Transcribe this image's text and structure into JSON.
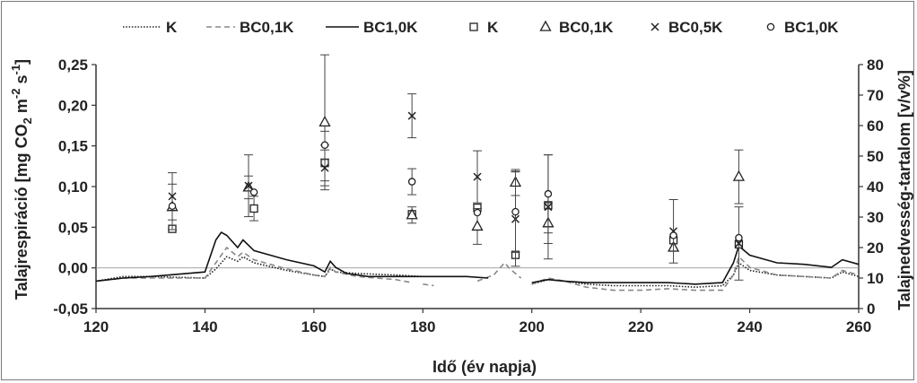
{
  "chart_data": {
    "type": "line",
    "xlabel": "Idő (év napja)",
    "ylabel": "Talajrespiráció [mg CO2 m-2 s-1]",
    "ylabel_parts": {
      "a": "Talajrespiráció [mg CO",
      "b": "2",
      "c": " m",
      "d": "-2",
      "e": " s",
      "f": "-1",
      "g": "]"
    },
    "y2label": "Talajnedvesség-tartalom [v/v%]",
    "xlim": [
      120,
      260
    ],
    "ylim": [
      -0.05,
      0.25
    ],
    "y2lim": [
      0,
      80
    ],
    "x_ticks": [
      "120",
      "140",
      "160",
      "180",
      "200",
      "220",
      "240",
      "260"
    ],
    "y_ticks": [
      "-0,05",
      "0,00",
      "0,05",
      "0,10",
      "0,15",
      "0,20",
      "0,25"
    ],
    "y2_ticks": [
      "0",
      "10",
      "20",
      "30",
      "40",
      "50",
      "60",
      "70",
      "80"
    ],
    "legend_position": "top",
    "line_series": [
      {
        "name": "K",
        "style": "dotted",
        "axis": "secondary",
        "segments": [
          [
            [
              120,
              9
            ],
            [
              125,
              10.5
            ],
            [
              130,
              10.5
            ],
            [
              140,
              10
            ],
            [
              142,
              13
            ],
            [
              144,
              17
            ],
            [
              146,
              15.5
            ],
            [
              147,
              17
            ],
            [
              149,
              15
            ],
            [
              155,
              12.5
            ],
            [
              160,
              11
            ],
            [
              162,
              10.5
            ],
            [
              163,
              13
            ],
            [
              164,
              12
            ],
            [
              168,
              11.5
            ],
            [
              175,
              11
            ],
            [
              180,
              10.5
            ]
          ],
          [
            [
              200,
              8
            ],
            [
              203,
              9.5
            ],
            [
              206,
              9
            ],
            [
              210,
              8
            ],
            [
              215,
              7.5
            ],
            [
              220,
              7.5
            ],
            [
              225,
              7.5
            ],
            [
              230,
              7
            ],
            [
              235,
              7.5
            ],
            [
              237,
              11
            ],
            [
              238,
              15
            ],
            [
              240,
              12.5
            ],
            [
              245,
              11
            ],
            [
              250,
              10.5
            ],
            [
              255,
              10
            ],
            [
              257,
              12
            ],
            [
              260,
              10.5
            ]
          ]
        ]
      },
      {
        "name": "BC0,1K",
        "style": "dashed",
        "axis": "secondary",
        "segments": [
          [
            [
              120,
              9
            ],
            [
              125,
              10
            ],
            [
              130,
              10
            ],
            [
              140,
              10
            ],
            [
              142,
              15
            ],
            [
              144,
              20
            ],
            [
              146,
              17
            ],
            [
              147,
              18.5
            ],
            [
              149,
              16
            ],
            [
              155,
              13
            ],
            [
              160,
              11
            ],
            [
              162,
              10.5
            ],
            [
              163,
              13.5
            ],
            [
              164,
              12
            ],
            [
              168,
              10.5
            ],
            [
              175,
              9.5
            ],
            [
              178,
              8.5
            ]
          ],
          [
            [
              180,
              8
            ],
            [
              182,
              7.5
            ]
          ],
          [
            [
              190,
              9
            ],
            [
              193,
              11
            ],
            [
              195,
              15
            ],
            [
              196,
              13
            ],
            [
              198,
              10
            ]
          ],
          [
            [
              200,
              8
            ],
            [
              203,
              10
            ],
            [
              206,
              9
            ],
            [
              210,
              7
            ],
            [
              215,
              6
            ],
            [
              220,
              6
            ],
            [
              225,
              6.5
            ],
            [
              230,
              6
            ],
            [
              235,
              6
            ],
            [
              237,
              11
            ],
            [
              238,
              17
            ],
            [
              240,
              13.5
            ],
            [
              245,
              11
            ],
            [
              250,
              10.5
            ],
            [
              255,
              10
            ],
            [
              257,
              12.5
            ],
            [
              260,
              11
            ]
          ]
        ]
      },
      {
        "name": "BC1,0K",
        "style": "solid",
        "axis": "secondary",
        "segments": [
          [
            [
              120,
              9
            ],
            [
              125,
              10
            ],
            [
              130,
              10.5
            ],
            [
              140,
              12
            ],
            [
              142,
              22.5
            ],
            [
              143,
              25
            ],
            [
              144,
              24
            ],
            [
              146,
              20
            ],
            [
              147,
              22.5
            ],
            [
              149,
              19
            ],
            [
              152,
              17.5
            ],
            [
              155,
              16
            ],
            [
              160,
              14
            ],
            [
              162,
              12
            ],
            [
              163,
              15.5
            ],
            [
              164,
              13.5
            ],
            [
              166,
              11.5
            ],
            [
              170,
              10.5
            ],
            [
              180,
              10.5
            ],
            [
              188,
              10.5
            ],
            [
              192,
              10
            ]
          ],
          [
            [
              200,
              8.5
            ],
            [
              203,
              9.5
            ],
            [
              206,
              9
            ],
            [
              210,
              8.5
            ],
            [
              215,
              8.5
            ],
            [
              220,
              8.5
            ],
            [
              225,
              8.5
            ],
            [
              230,
              8
            ],
            [
              235,
              8.5
            ],
            [
              237,
              15
            ],
            [
              238,
              20.5
            ],
            [
              239,
              19
            ],
            [
              240,
              17.5
            ],
            [
              245,
              15
            ],
            [
              250,
              14.5
            ],
            [
              255,
              13.5
            ],
            [
              257,
              16
            ],
            [
              260,
              14.5
            ]
          ]
        ]
      }
    ],
    "point_series": [
      {
        "name": "K",
        "marker": "square",
        "axis": "primary",
        "points": [
          {
            "x": 134,
            "y": 0.048,
            "err": 0
          },
          {
            "x": 149,
            "y": 0.073,
            "err": 0.015
          },
          {
            "x": 162,
            "y": 0.129,
            "err": 0.022
          },
          {
            "x": 178,
            "y": 0.066,
            "err": 0
          },
          {
            "x": 190,
            "y": 0.074,
            "err": 0
          },
          {
            "x": 197,
            "y": 0.016,
            "err": 0
          },
          {
            "x": 203,
            "y": 0.077,
            "err": 0
          },
          {
            "x": 226,
            "y": 0.034,
            "err": 0
          },
          {
            "x": 238,
            "y": 0.029,
            "err": 0
          }
        ]
      },
      {
        "name": "BC0,1K",
        "marker": "triangle",
        "axis": "primary",
        "points": [
          {
            "x": 134,
            "y": 0.075,
            "err": 0.028
          },
          {
            "x": 148,
            "y": 0.099,
            "err": 0.014
          },
          {
            "x": 162,
            "y": 0.179,
            "err": 0.083
          },
          {
            "x": 178,
            "y": 0.065,
            "err": 0.01
          },
          {
            "x": 190,
            "y": 0.051,
            "err": 0.022
          },
          {
            "x": 197,
            "y": 0.105,
            "err": 0.016
          },
          {
            "x": 203,
            "y": 0.055,
            "err": 0.025
          },
          {
            "x": 226,
            "y": 0.025,
            "err": 0
          },
          {
            "x": 238,
            "y": 0.112,
            "err": 0.033
          }
        ]
      },
      {
        "name": "BC0,5K",
        "marker": "cross",
        "axis": "primary",
        "points": [
          {
            "x": 134,
            "y": 0.088,
            "err": 0.029
          },
          {
            "x": 148,
            "y": 0.101,
            "err": 0.038
          },
          {
            "x": 162,
            "y": 0.123,
            "err": 0.022
          },
          {
            "x": 178,
            "y": 0.187,
            "err": 0.027
          },
          {
            "x": 190,
            "y": 0.112,
            "err": 0.032
          },
          {
            "x": 197,
            "y": 0.06,
            "err": 0.058
          },
          {
            "x": 203,
            "y": 0.075,
            "err": 0.064
          },
          {
            "x": 226,
            "y": 0.045,
            "err": 0.039
          },
          {
            "x": 238,
            "y": 0.03,
            "err": 0.045
          }
        ]
      },
      {
        "name": "BC1,0K",
        "marker": "circle",
        "axis": "primary",
        "points": [
          {
            "x": 134,
            "y": 0.076,
            "err": 0
          },
          {
            "x": 149,
            "y": 0.093,
            "err": 0
          },
          {
            "x": 162,
            "y": 0.151,
            "err": 0.017
          },
          {
            "x": 178,
            "y": 0.106,
            "err": 0.016
          },
          {
            "x": 190,
            "y": 0.068,
            "err": 0
          },
          {
            "x": 197,
            "y": 0.069,
            "err": 0.05
          },
          {
            "x": 203,
            "y": 0.091,
            "err": 0.048
          },
          {
            "x": 226,
            "y": 0.04,
            "err": 0
          },
          {
            "x": 238,
            "y": 0.037,
            "err": 0
          }
        ]
      }
    ]
  }
}
